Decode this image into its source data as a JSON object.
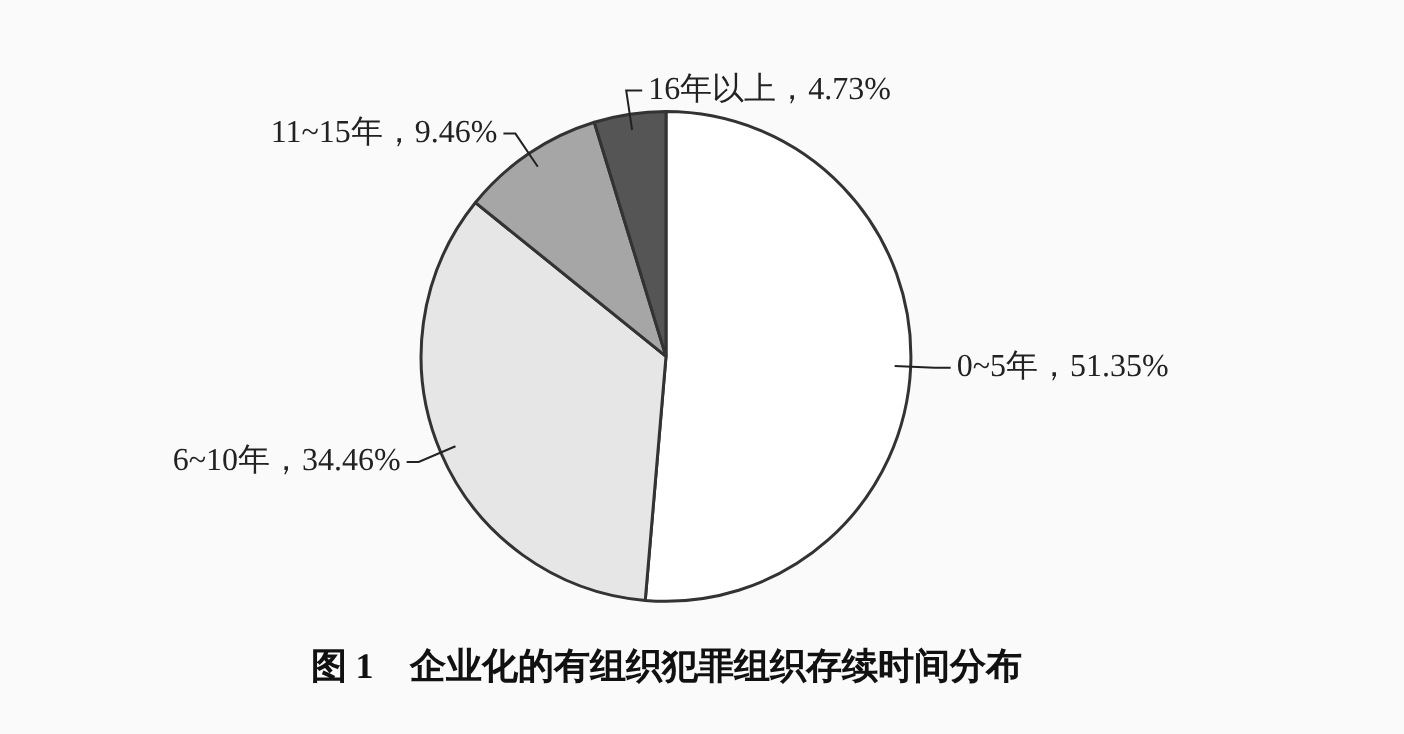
{
  "chart_data": {
    "type": "pie",
    "title": "图 1　企业化的有组织犯罪组织存续时间分布",
    "categories": [
      "0~5年",
      "6~10年",
      "11~15年",
      "16年以上"
    ],
    "values": [
      51.35,
      34.46,
      9.46,
      4.73
    ],
    "colors": [
      "#ffffff",
      "#e6e6e6",
      "#a6a6a6",
      "#555555"
    ],
    "value_labels": [
      "，51.35%",
      "，34.46%",
      "，9.46%",
      "，4.73%"
    ],
    "legend": false
  }
}
